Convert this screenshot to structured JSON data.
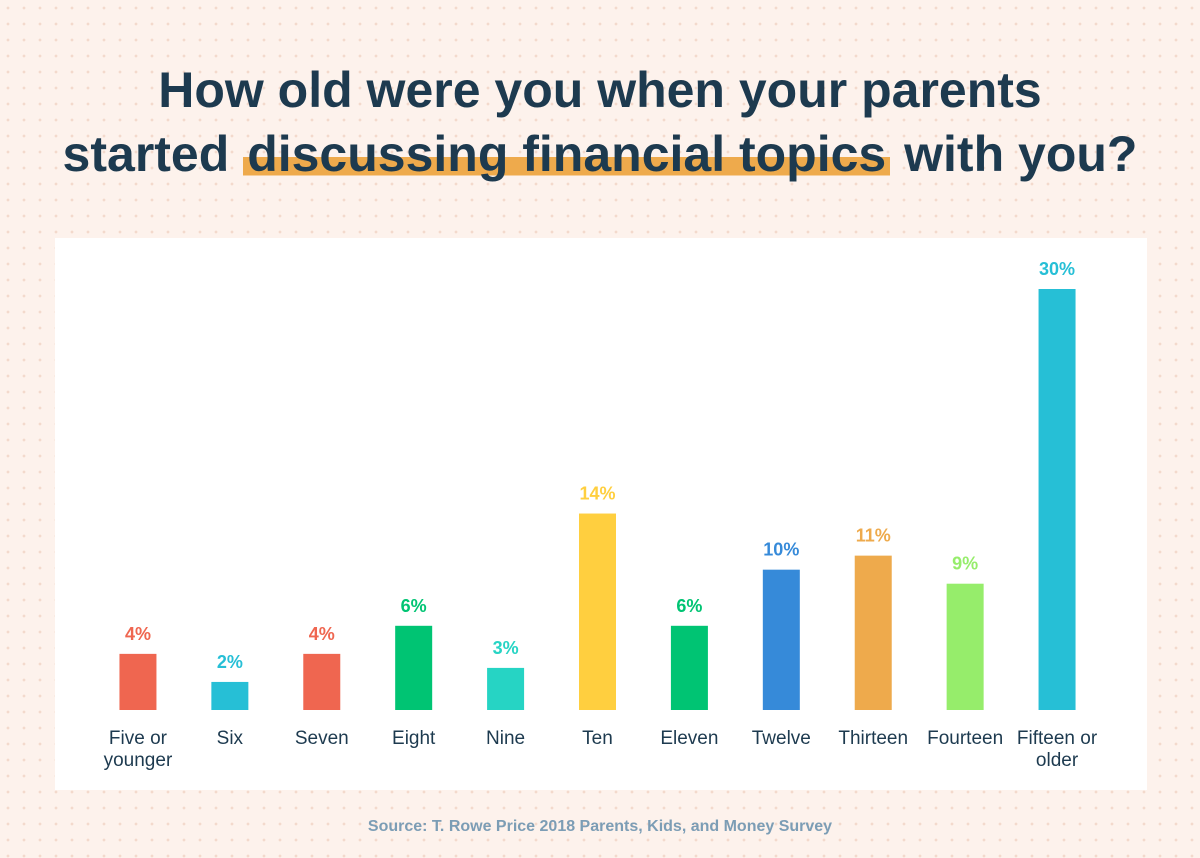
{
  "chart_data": {
    "type": "bar",
    "title": [
      "How old were you when your parents",
      "started",
      "discussing financial topics",
      "with you?"
    ],
    "categories": [
      "Five or younger",
      "Six",
      "Seven",
      "Eight",
      "Nine",
      "Ten",
      "Eleven",
      "Twelve",
      "Thirteen",
      "Fourteen",
      "Fifteen or older"
    ],
    "values": [
      4,
      2,
      4,
      6,
      3,
      14,
      6,
      10,
      11,
      9,
      30
    ],
    "value_labels": [
      "4%",
      "2%",
      "4%",
      "6%",
      "3%",
      "14%",
      "6%",
      "10%",
      "11%",
      "9%",
      "30%"
    ],
    "colors": [
      "#ef6650",
      "#26bfd6",
      "#ef6650",
      "#00c473",
      "#26d4c4",
      "#ffcf3f",
      "#00c473",
      "#368ad9",
      "#eeaa4c",
      "#96ed6b",
      "#26bfd6"
    ],
    "ylim": [
      0,
      30
    ],
    "source": "Source: T. Rowe Price 2018 Parents, Kids, and Money Survey"
  }
}
